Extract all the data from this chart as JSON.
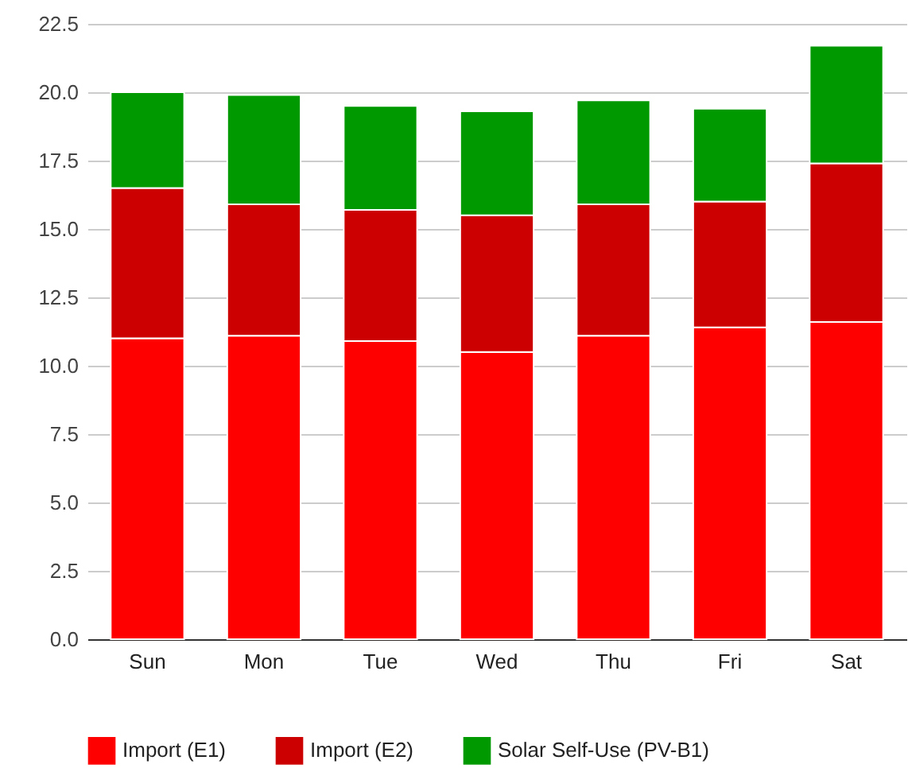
{
  "chart_data": {
    "type": "bar",
    "stacked": true,
    "categories": [
      "Sun",
      "Mon",
      "Tue",
      "Wed",
      "Thu",
      "Fri",
      "Sat"
    ],
    "series": [
      {
        "name": "Import (E1)",
        "color": "#ff0000",
        "values": [
          11.0,
          11.1,
          10.9,
          10.5,
          11.1,
          11.4,
          11.6
        ]
      },
      {
        "name": "Import (E2)",
        "color": "#cc0000",
        "values": [
          5.5,
          4.8,
          4.8,
          5.0,
          4.8,
          4.6,
          5.8
        ]
      },
      {
        "name": "Solar Self-Use (PV-B1)",
        "color": "#009900",
        "values": [
          3.5,
          4.0,
          3.8,
          3.8,
          3.8,
          3.4,
          4.3
        ]
      }
    ],
    "ylim": [
      0,
      22.5
    ],
    "yticks": [
      {
        "value": 0,
        "label": "0.0"
      },
      2.5,
      {
        "value": 5,
        "label": "5.0"
      },
      7.5,
      {
        "value": 10,
        "label": "10.0"
      },
      12.5,
      {
        "value": 15,
        "label": "15.0"
      },
      17.5,
      {
        "value": 20,
        "label": "20.0"
      },
      22.5
    ],
    "grid": "y",
    "legend": "bottom"
  }
}
